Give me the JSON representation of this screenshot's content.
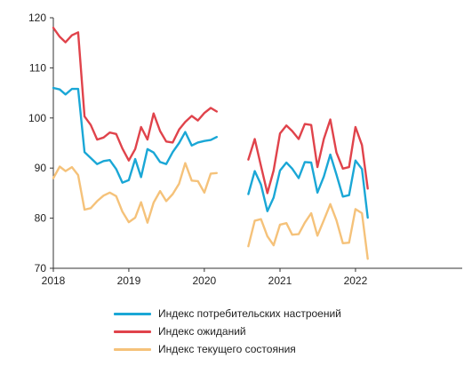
{
  "chart_data": {
    "type": "line",
    "xlabel": "",
    "ylabel": "",
    "x_range": [
      "2018-01-01",
      "2023-06-01"
    ],
    "ylim": [
      70,
      120
    ],
    "yticks": [
      70,
      80,
      90,
      100,
      110,
      120
    ],
    "xticks": [
      {
        "date": "2018-01-01",
        "label": "2018"
      },
      {
        "date": "2019-01-01",
        "label": "2019"
      },
      {
        "date": "2020-01-01",
        "label": "2020"
      },
      {
        "date": "2021-01-01",
        "label": "2021"
      },
      {
        "date": "2022-01-01",
        "label": "2022"
      }
    ],
    "grid": false,
    "legend_position": "bottom",
    "series": [
      {
        "name": "Индекс потребительских настроений",
        "color": "#1aa7d6",
        "segments": [
          {
            "x": [
              "2018-01-01",
              "2018-02-01",
              "2018-03-01",
              "2018-04-01",
              "2018-05-01",
              "2018-06-01",
              "2018-07-01",
              "2018-08-01",
              "2018-09-01",
              "2018-10-01",
              "2018-11-01",
              "2018-12-01",
              "2019-01-01",
              "2019-02-01",
              "2019-03-01",
              "2019-04-01",
              "2019-05-01",
              "2019-06-01",
              "2019-07-01",
              "2019-08-01",
              "2019-09-01",
              "2019-10-01",
              "2019-11-01",
              "2019-12-01",
              "2020-01-01",
              "2020-02-01",
              "2020-03-01"
            ],
            "y": [
              106,
              105.7,
              104.7,
              105.8,
              105.8,
              93.2,
              92,
              90.8,
              91.4,
              91.6,
              89.8,
              87.1,
              87.6,
              91.8,
              88.2,
              93.8,
              93.1,
              91.2,
              90.8,
              93.2,
              95,
              97.2,
              94.5,
              95.1,
              95.4,
              95.6,
              96.2
            ]
          },
          {
            "x": [
              "2020-08-01",
              "2020-09-01",
              "2020-10-01",
              "2020-11-01",
              "2020-12-01",
              "2021-01-01",
              "2021-02-01",
              "2021-03-01",
              "2021-04-01",
              "2021-05-01",
              "2021-06-01",
              "2021-07-01",
              "2021-08-01",
              "2021-09-01",
              "2021-10-01",
              "2021-11-01",
              "2021-12-01",
              "2022-01-01",
              "2022-02-01",
              "2022-03-01"
            ],
            "y": [
              84.8,
              89.4,
              86.7,
              81.4,
              84.1,
              89.5,
              91.1,
              89.9,
              88,
              91.2,
              91.1,
              85.1,
              88.3,
              92.7,
              88.7,
              84.3,
              84.6,
              91.5,
              89.8,
              80.1
            ]
          }
        ]
      },
      {
        "name": "Индекс ожиданий",
        "color": "#e0434b",
        "segments": [
          {
            "x": [
              "2018-01-01",
              "2018-02-01",
              "2018-03-01",
              "2018-04-01",
              "2018-05-01",
              "2018-06-01",
              "2018-07-01",
              "2018-08-01",
              "2018-09-01",
              "2018-10-01",
              "2018-11-01",
              "2018-12-01",
              "2019-01-01",
              "2019-02-01",
              "2019-03-01",
              "2019-04-01",
              "2019-05-01",
              "2019-06-01",
              "2019-07-01",
              "2019-08-01",
              "2019-09-01",
              "2019-10-01",
              "2019-11-01",
              "2019-12-01",
              "2020-01-01",
              "2020-02-01",
              "2020-03-01"
            ],
            "y": [
              118,
              116.2,
              115.1,
              116.5,
              117.1,
              100.3,
              98.6,
              95.7,
              96.1,
              97.1,
              96.8,
              93.9,
              91.5,
              93.8,
              98.2,
              95.7,
              100.9,
              97.4,
              95.3,
              95.1,
              97.7,
              99.2,
              100.4,
              99.5,
              101,
              102,
              101.3
            ]
          },
          {
            "x": [
              "2020-08-01",
              "2020-09-01",
              "2020-10-01",
              "2020-11-01",
              "2020-12-01",
              "2021-01-01",
              "2021-02-01",
              "2021-03-01",
              "2021-04-01",
              "2021-05-01",
              "2021-06-01",
              "2021-07-01",
              "2021-08-01",
              "2021-09-01",
              "2021-10-01",
              "2021-11-01",
              "2021-12-01",
              "2022-01-01",
              "2022-02-01",
              "2022-03-01"
            ],
            "y": [
              91.7,
              95.8,
              90.4,
              85,
              89.5,
              96.9,
              98.5,
              97.4,
              95.8,
              98.8,
              98.6,
              90.2,
              95.8,
              99.7,
              93.1,
              89.9,
              90.2,
              98.2,
              94.6,
              85.9
            ]
          }
        ]
      },
      {
        "name": "Индекс текущего состояния",
        "color": "#f5c27a",
        "segments": [
          {
            "x": [
              "2018-01-01",
              "2018-02-01",
              "2018-03-01",
              "2018-04-01",
              "2018-05-01",
              "2018-06-01",
              "2018-07-01",
              "2018-08-01",
              "2018-09-01",
              "2018-10-01",
              "2018-11-01",
              "2018-12-01",
              "2019-01-01",
              "2019-02-01",
              "2019-03-01",
              "2019-04-01",
              "2019-05-01",
              "2019-06-01",
              "2019-07-01",
              "2019-08-01",
              "2019-09-01",
              "2019-10-01",
              "2019-11-01",
              "2019-12-01",
              "2020-01-01",
              "2020-02-01",
              "2020-03-01"
            ],
            "y": [
              88,
              90.3,
              89.4,
              90.2,
              88.6,
              81.7,
              82,
              83.4,
              84.5,
              85.1,
              84.4,
              81.3,
              79.2,
              80.1,
              83.2,
              79.1,
              83.1,
              85.4,
              83.4,
              84.8,
              86.9,
              91,
              87.5,
              87.4,
              85.1,
              88.9,
              89
            ]
          },
          {
            "x": [
              "2020-08-01",
              "2020-09-01",
              "2020-10-01",
              "2020-11-01",
              "2020-12-01",
              "2021-01-01",
              "2021-02-01",
              "2021-03-01",
              "2021-04-01",
              "2021-05-01",
              "2021-06-01",
              "2021-07-01",
              "2021-08-01",
              "2021-09-01",
              "2021-10-01",
              "2021-11-01",
              "2021-12-01",
              "2022-01-01",
              "2022-02-01",
              "2022-03-01"
            ],
            "y": [
              74.4,
              79.5,
              79.8,
              76.4,
              74.6,
              78.7,
              79,
              76.7,
              76.8,
              79.1,
              81,
              76.5,
              79.6,
              82.8,
              79.6,
              75,
              75.1,
              81.8,
              81,
              71.9
            ]
          }
        ]
      }
    ]
  },
  "legend": [
    {
      "label": "Индекс потребительских настроений",
      "color": "#1aa7d6"
    },
    {
      "label": "Индекс ожиданий",
      "color": "#e0434b"
    },
    {
      "label": "Индекс текущего состояния",
      "color": "#f5c27a"
    }
  ]
}
